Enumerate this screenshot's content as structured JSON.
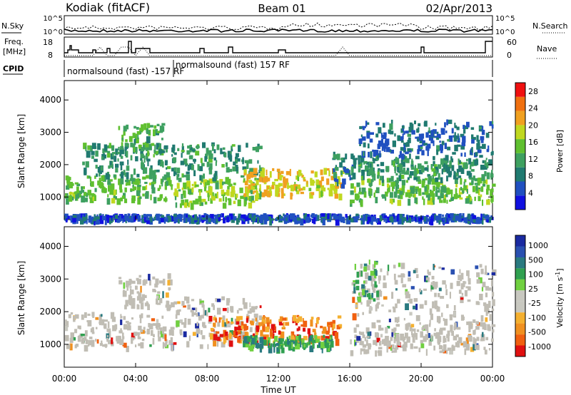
{
  "header": {
    "station": "Kodiak (fitACF)",
    "beam": "Beam 01",
    "date": "02/Apr/2013"
  },
  "summary": {
    "nsky_label": "N.Sky",
    "nsearch_label": "N.Search",
    "freq_label_1": "Freq.",
    "freq_label_2": "[MHz]",
    "nave_label": "Nave",
    "cpid_label": "CPID",
    "noise_ticks": [
      "10^5",
      "10^0"
    ],
    "noise_ticks_right": [
      "10^5",
      "10^0"
    ],
    "freq_ticks": [
      "18",
      "8"
    ],
    "nave_ticks": [
      "60",
      "0"
    ],
    "cpid_texts": [
      "normalsound (fast) -157 RF",
      "normalsound (fast) 157 RF"
    ]
  },
  "colors": {
    "power_scale": [
      "#1010e0",
      "#2050c0",
      "#207a70",
      "#3ea060",
      "#60c030",
      "#c0d820",
      "#f0a020",
      "#f07010",
      "#f01010"
    ],
    "velocity_scale": [
      "#e01010",
      "#f06010",
      "#f09020",
      "#f4b030",
      "#c8c8c0",
      "#c8c8c0",
      "#70d040",
      "#30a050",
      "#2a7a80",
      "#2a50b0",
      "#1a2aa0"
    ],
    "ground_scatter": "#c0bdb4"
  },
  "chart_data": [
    {
      "type": "heatmap",
      "name": "power",
      "ylabel": "Slant Range [km]",
      "yticks": [
        "1000",
        "2000",
        "3000",
        "4000"
      ],
      "ylim": [
        300,
        4600
      ],
      "xlim": [
        0,
        24
      ],
      "colorbar_label": "Power [dB]",
      "colorbar_ticks": [
        "4",
        "8",
        "12",
        "16",
        "20",
        "24",
        "28"
      ],
      "colorbar_range": [
        0,
        30
      ],
      "scatter_bands": [
        {
          "t0": 0.0,
          "t1": 6.0,
          "r0": 950,
          "r1": 1700,
          "level": 14
        },
        {
          "t0": 1.0,
          "t1": 5.8,
          "r0": 1700,
          "r1": 2700,
          "level": 10
        },
        {
          "t0": 3.0,
          "t1": 5.5,
          "r0": 2400,
          "r1": 3300,
          "level": 12
        },
        {
          "t0": 6.0,
          "t1": 11.0,
          "r0": 800,
          "r1": 1600,
          "level": 16
        },
        {
          "t0": 6.0,
          "t1": 11.0,
          "r0": 1600,
          "r1": 2700,
          "level": 10
        },
        {
          "t0": 10.0,
          "t1": 15.5,
          "r0": 1100,
          "r1": 1900,
          "level": 20
        },
        {
          "t0": 15.0,
          "t1": 16.2,
          "r0": 1400,
          "r1": 2400,
          "level": 8
        },
        {
          "t0": 16.0,
          "t1": 24.0,
          "r0": 900,
          "r1": 1600,
          "level": 14
        },
        {
          "t0": 16.0,
          "t1": 24.0,
          "r0": 1600,
          "r1": 2300,
          "level": 10
        },
        {
          "t0": 16.5,
          "t1": 24.0,
          "r0": 2300,
          "r1": 3400,
          "level": 6
        },
        {
          "t0": 0.0,
          "t1": 24.0,
          "r0": 320,
          "r1": 500,
          "level": 4
        }
      ]
    },
    {
      "type": "heatmap",
      "name": "velocity",
      "ylabel": "Slant Range [km]",
      "yticks": [
        "1000",
        "2000",
        "3000",
        "4000"
      ],
      "ylim": [
        300,
        4600
      ],
      "xlim": [
        0,
        24
      ],
      "colorbar_label": "Velocity [m s^-1]",
      "colorbar_ticks": [
        "1000",
        "500",
        "100",
        "25",
        "-25",
        "-100",
        "-500",
        "-1000"
      ],
      "scatter_bands": [
        {
          "t0": 0.0,
          "t1": 6.0,
          "r0": 950,
          "r1": 2000,
          "level": 0
        },
        {
          "t0": 3.0,
          "t1": 6.0,
          "r0": 2200,
          "r1": 3200,
          "level": 0
        },
        {
          "t0": 6.0,
          "t1": 11.0,
          "r0": 1000,
          "r1": 2500,
          "level": 0
        },
        {
          "t0": 8.0,
          "t1": 15.5,
          "r0": 1100,
          "r1": 1900,
          "level": -200
        },
        {
          "t0": 10.0,
          "t1": 15.0,
          "r0": 900,
          "r1": 1300,
          "level": 150
        },
        {
          "t0": 16.0,
          "t1": 24.0,
          "r0": 800,
          "r1": 1700,
          "level": 0
        },
        {
          "t0": 16.0,
          "t1": 24.0,
          "r0": 1700,
          "r1": 3500,
          "level": 0
        },
        {
          "t0": 16.2,
          "t1": 17.5,
          "r0": 2400,
          "r1": 3600,
          "level": 150
        }
      ]
    }
  ],
  "xaxis": {
    "label": "Time UT",
    "ticks": [
      "00:00",
      "04:00",
      "08:00",
      "12:00",
      "16:00",
      "20:00",
      "00:00"
    ],
    "tick_hours": [
      0,
      4,
      8,
      12,
      16,
      20,
      24
    ]
  }
}
